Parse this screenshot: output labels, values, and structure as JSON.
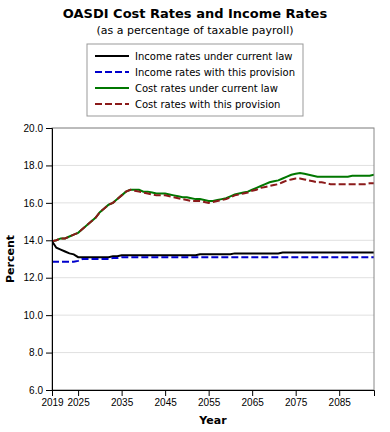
{
  "chart_data": {
    "type": "line",
    "title": "OASDI Cost Rates and Income Rates",
    "subtitle": "(as a percentage of taxable payroll)",
    "x_label": "Year",
    "y_label": "Percent",
    "xlim": [
      2019,
      2093
    ],
    "xticks": [
      2019,
      2025,
      2035,
      2045,
      2055,
      2065,
      2075,
      2085
    ],
    "ylim": [
      6.0,
      20.0
    ],
    "yticks": [
      {
        "value": 6.0,
        "label": "6.0"
      },
      {
        "value": 8.0,
        "label": "8.0"
      },
      {
        "value": 10.0,
        "label": "10.0"
      },
      {
        "value": 12.0,
        "label": "12.0"
      },
      {
        "value": 14.0,
        "label": "14.0"
      },
      {
        "value": 16.0,
        "label": "16.0"
      },
      {
        "value": 18.0,
        "label": "18.0"
      },
      {
        "value": 20.0,
        "label": "20.0"
      }
    ],
    "grid": true,
    "legend": "top",
    "x": [
      2019,
      2020,
      2021,
      2022,
      2023,
      2024,
      2025,
      2026,
      2027,
      2028,
      2029,
      2030,
      2031,
      2032,
      2033,
      2034,
      2035,
      2036,
      2037,
      2038,
      2039,
      2040,
      2041,
      2042,
      2043,
      2044,
      2045,
      2046,
      2047,
      2048,
      2049,
      2050,
      2051,
      2052,
      2053,
      2054,
      2055,
      2056,
      2057,
      2058,
      2059,
      2060,
      2061,
      2062,
      2063,
      2064,
      2065,
      2066,
      2067,
      2068,
      2069,
      2070,
      2071,
      2072,
      2073,
      2074,
      2075,
      2076,
      2077,
      2078,
      2079,
      2080,
      2081,
      2082,
      2083,
      2084,
      2085,
      2086,
      2087,
      2088,
      2089,
      2090,
      2091,
      2092,
      2093
    ],
    "series": [
      {
        "name": "Income rates under current law",
        "color": "#000000",
        "line_style": "solid",
        "values": [
          13.95,
          13.6,
          13.5,
          13.4,
          13.3,
          13.25,
          13.1,
          13.1,
          13.1,
          13.1,
          13.1,
          13.1,
          13.1,
          13.1,
          13.15,
          13.15,
          13.2,
          13.2,
          13.2,
          13.2,
          13.2,
          13.2,
          13.2,
          13.2,
          13.2,
          13.2,
          13.2,
          13.2,
          13.2,
          13.2,
          13.2,
          13.2,
          13.2,
          13.2,
          13.25,
          13.25,
          13.25,
          13.25,
          13.25,
          13.25,
          13.25,
          13.25,
          13.3,
          13.3,
          13.3,
          13.3,
          13.3,
          13.3,
          13.3,
          13.3,
          13.3,
          13.3,
          13.3,
          13.35,
          13.35,
          13.35,
          13.35,
          13.35,
          13.35,
          13.35,
          13.35,
          13.35,
          13.35,
          13.35,
          13.35,
          13.35,
          13.35,
          13.35,
          13.35,
          13.35,
          13.35,
          13.35,
          13.35,
          13.35,
          13.35
        ]
      },
      {
        "name": "Income rates with this provision",
        "color": "#0000cc",
        "line_style": "dashed",
        "values": [
          12.85,
          12.85,
          12.85,
          12.85,
          12.85,
          12.85,
          12.9,
          13.0,
          13.0,
          13.0,
          13.0,
          13.0,
          13.0,
          13.0,
          13.05,
          13.05,
          13.1,
          13.1,
          13.1,
          13.1,
          13.1,
          13.1,
          13.1,
          13.1,
          13.1,
          13.1,
          13.1,
          13.1,
          13.1,
          13.1,
          13.1,
          13.1,
          13.1,
          13.1,
          13.1,
          13.1,
          13.1,
          13.1,
          13.1,
          13.1,
          13.1,
          13.1,
          13.1,
          13.1,
          13.1,
          13.1,
          13.1,
          13.1,
          13.1,
          13.1,
          13.1,
          13.1,
          13.1,
          13.1,
          13.1,
          13.1,
          13.1,
          13.1,
          13.1,
          13.1,
          13.1,
          13.1,
          13.1,
          13.1,
          13.1,
          13.1,
          13.1,
          13.1,
          13.1,
          13.1,
          13.1,
          13.1,
          13.1,
          13.1,
          13.1
        ]
      },
      {
        "name": "Cost rates under current law",
        "color": "#007700",
        "line_style": "solid",
        "values": [
          13.95,
          14.0,
          14.1,
          14.1,
          14.2,
          14.3,
          14.4,
          14.6,
          14.8,
          15.0,
          15.2,
          15.5,
          15.7,
          15.9,
          16.0,
          16.2,
          16.4,
          16.6,
          16.7,
          16.7,
          16.7,
          16.6,
          16.6,
          16.55,
          16.5,
          16.5,
          16.5,
          16.45,
          16.4,
          16.35,
          16.3,
          16.3,
          16.25,
          16.2,
          16.2,
          16.15,
          16.1,
          16.1,
          16.15,
          16.2,
          16.25,
          16.35,
          16.45,
          16.5,
          16.55,
          16.6,
          16.7,
          16.8,
          16.9,
          17.0,
          17.1,
          17.15,
          17.2,
          17.3,
          17.4,
          17.5,
          17.55,
          17.6,
          17.55,
          17.5,
          17.45,
          17.4,
          17.4,
          17.4,
          17.4,
          17.4,
          17.4,
          17.4,
          17.4,
          17.45,
          17.45,
          17.45,
          17.45,
          17.45,
          17.5
        ]
      },
      {
        "name": "Cost rates with this provision",
        "color": "#8b1a1a",
        "line_style": "dashed",
        "values": [
          13.95,
          14.0,
          14.1,
          14.1,
          14.2,
          14.3,
          14.4,
          14.6,
          14.8,
          15.0,
          15.2,
          15.5,
          15.7,
          15.9,
          16.0,
          16.2,
          16.4,
          16.6,
          16.7,
          16.65,
          16.6,
          16.55,
          16.5,
          16.45,
          16.4,
          16.4,
          16.4,
          16.35,
          16.3,
          16.25,
          16.2,
          16.15,
          16.1,
          16.1,
          16.1,
          16.05,
          16.0,
          16.05,
          16.1,
          16.15,
          16.2,
          16.3,
          16.4,
          16.45,
          16.5,
          16.55,
          16.65,
          16.7,
          16.8,
          16.85,
          16.9,
          16.95,
          17.0,
          17.1,
          17.2,
          17.25,
          17.3,
          17.3,
          17.25,
          17.2,
          17.15,
          17.1,
          17.1,
          17.05,
          17.0,
          17.0,
          17.0,
          17.0,
          17.0,
          17.0,
          17.0,
          17.0,
          17.0,
          17.05,
          17.05
        ]
      }
    ]
  }
}
